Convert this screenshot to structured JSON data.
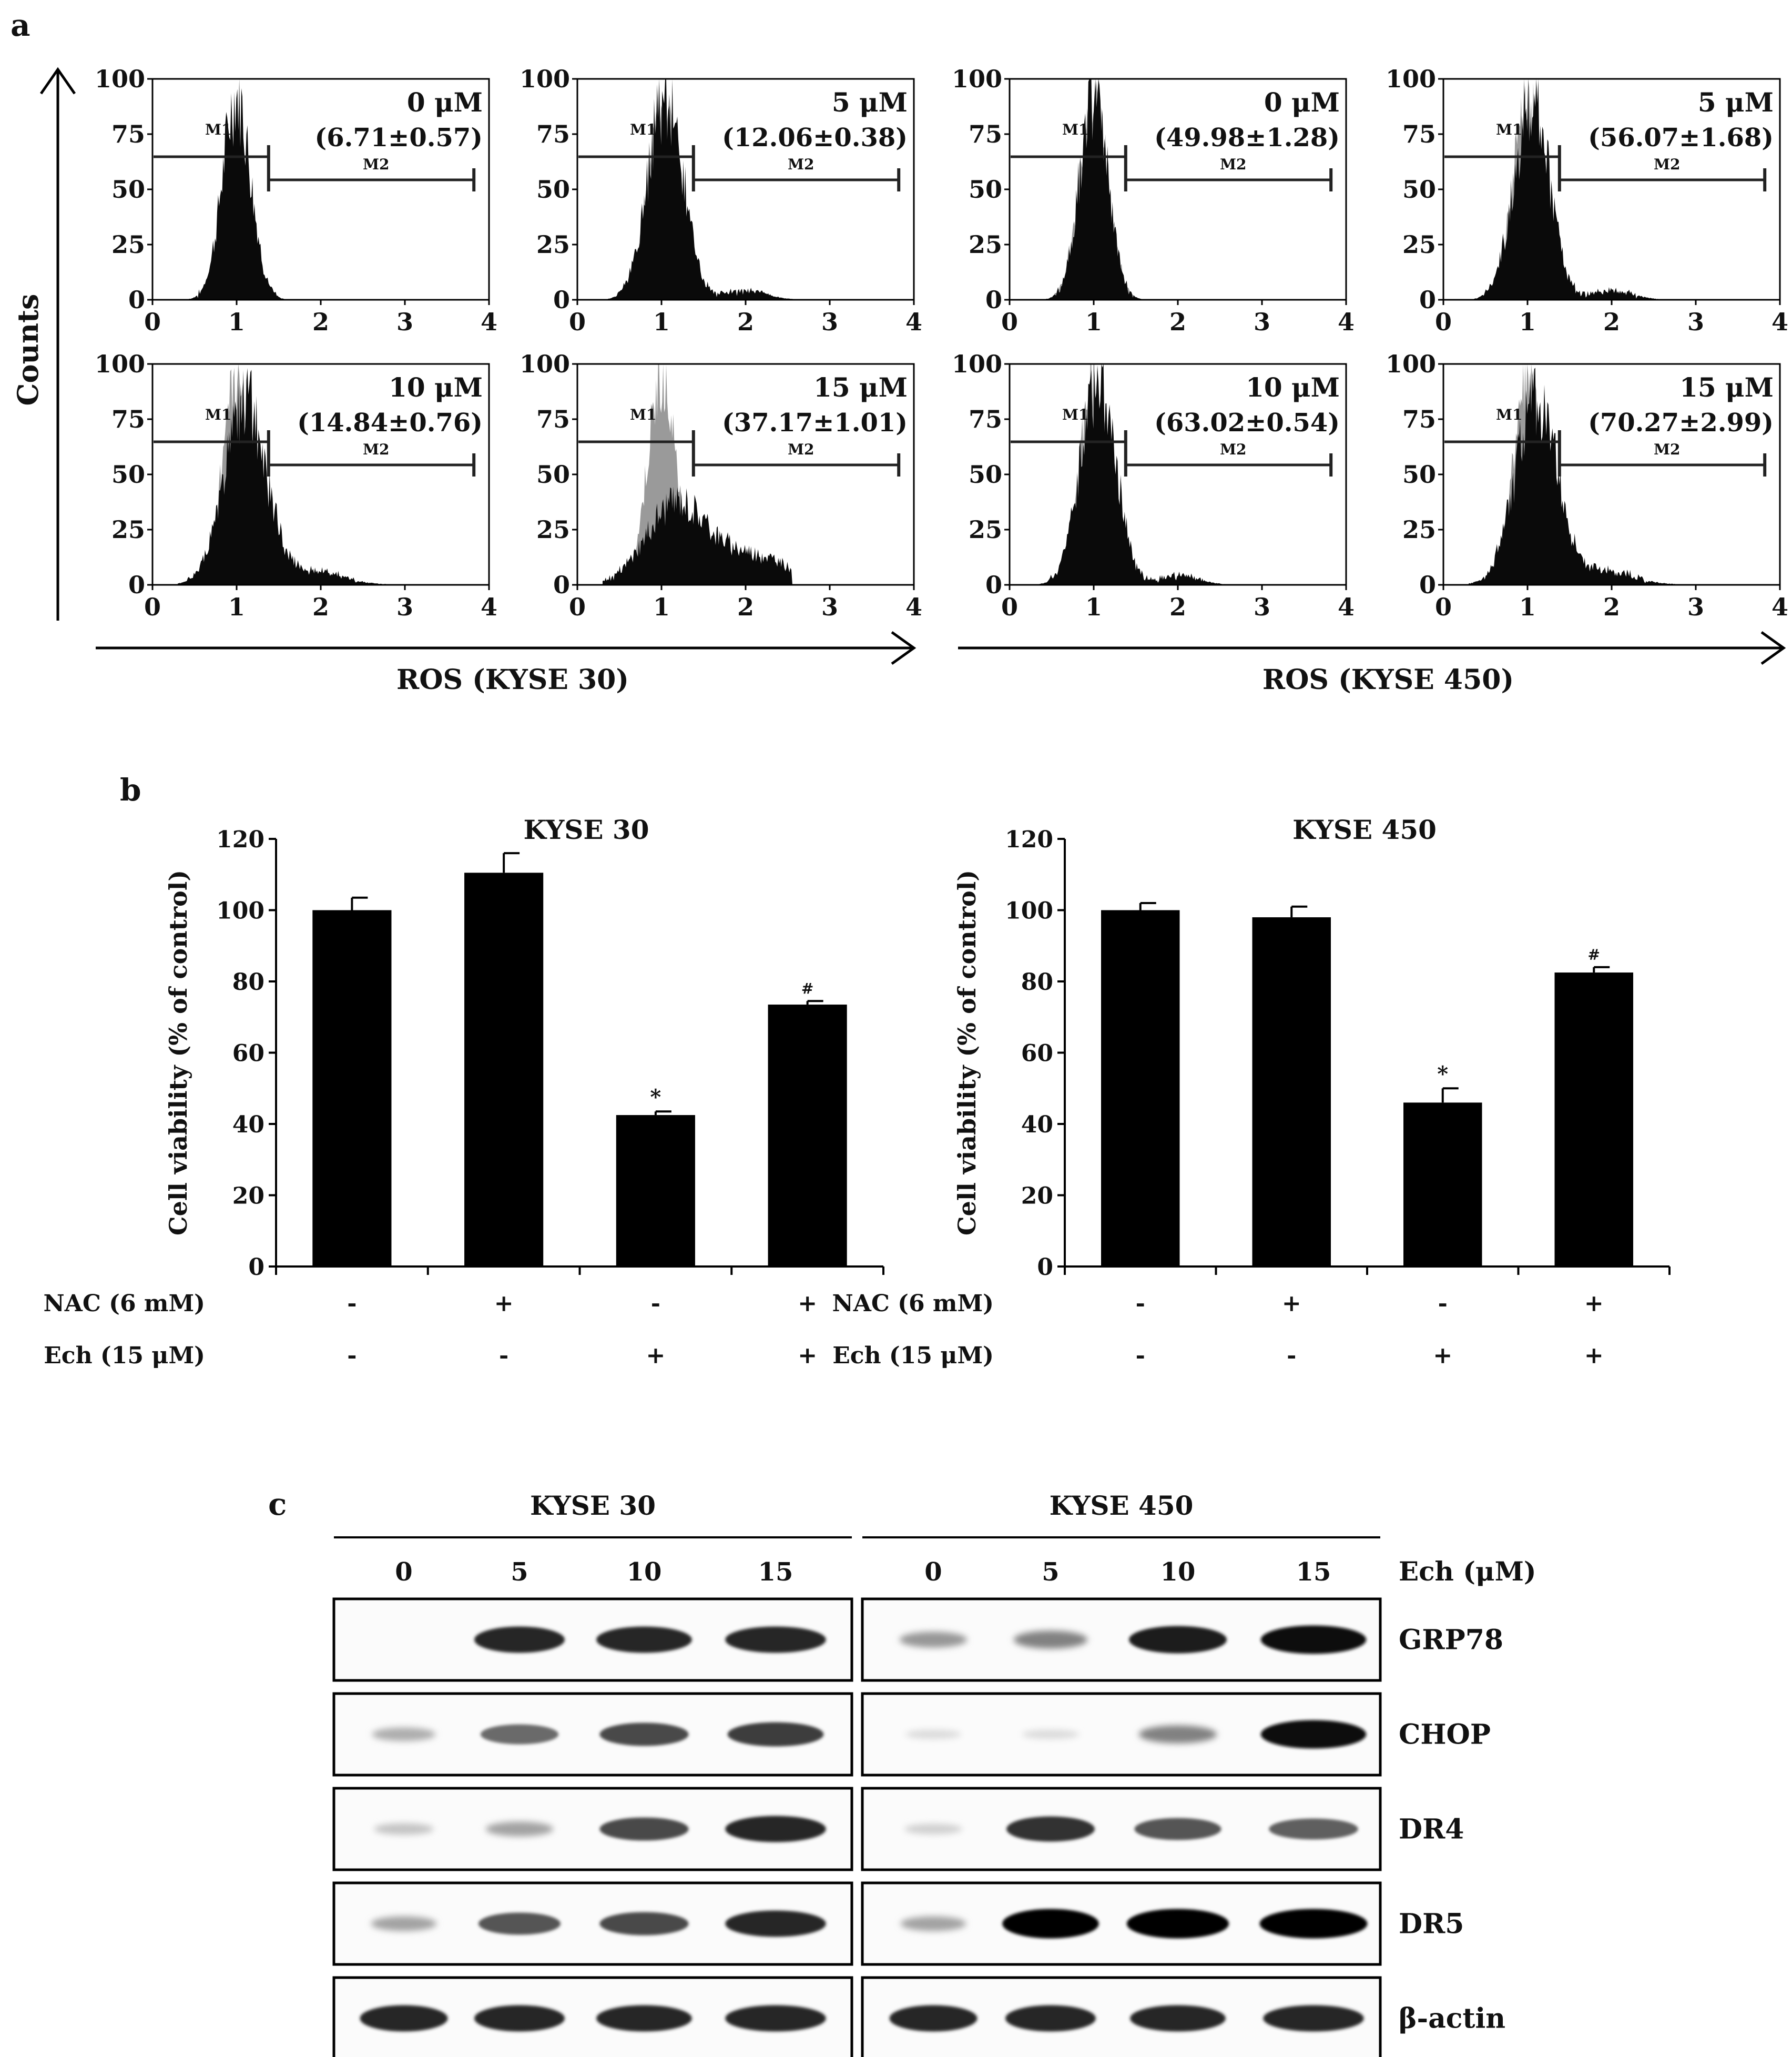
{
  "panel_labels": {
    "a": "a",
    "b": "b",
    "c": "c"
  },
  "panel_a": {
    "y_axis_label": "Counts",
    "x_groups": [
      {
        "label": "ROS (KYSE 30)"
      },
      {
        "label": "ROS (KYSE 450)"
      }
    ],
    "y_ticks": [
      "0",
      "25",
      "50",
      "75",
      "100"
    ],
    "x_ticks": [
      "0",
      "1",
      "2",
      "3",
      "4"
    ],
    "gate_labels": {
      "m1": "M1",
      "m2": "M2"
    },
    "colors": {
      "treated": "#0a0a0a",
      "control": "#9a9a9a"
    },
    "histograms": [
      {
        "cell_line": "KYSE 30",
        "dose": "0 μM",
        "value": "(6.71±0.57)",
        "spread": 0
      },
      {
        "cell_line": "KYSE 30",
        "dose": "5 μM",
        "value": "(12.06±0.38)",
        "spread": 1
      },
      {
        "cell_line": "KYSE 450",
        "dose": "0 μM",
        "value": "(49.98±1.28)",
        "spread": 0
      },
      {
        "cell_line": "KYSE 450",
        "dose": "5 μM",
        "value": "(56.07±1.68)",
        "spread": 1
      },
      {
        "cell_line": "KYSE 30",
        "dose": "10 μM",
        "value": "(14.84±0.76)",
        "spread": 2
      },
      {
        "cell_line": "KYSE 30",
        "dose": "15 μM",
        "value": "(37.17±1.01)",
        "spread": 3
      },
      {
        "cell_line": "KYSE 450",
        "dose": "10 μM",
        "value": "(63.02±0.54)",
        "spread": 1
      },
      {
        "cell_line": "KYSE 450",
        "dose": "15 μM",
        "value": "(70.27±2.99)",
        "spread": 2
      }
    ]
  },
  "chart_data": [
    {
      "type": "bar",
      "title": "KYSE 30",
      "ylabel": "Cell viability (% of control)",
      "ylim": [
        0,
        120
      ],
      "yticks": [
        0,
        20,
        40,
        60,
        80,
        100,
        120
      ],
      "values": [
        100,
        110.5,
        42.5,
        73.5
      ],
      "errors": [
        3.5,
        5.5,
        1.0,
        1.0
      ],
      "annotations": [
        "",
        "",
        "*",
        "#"
      ],
      "row_labels": [
        "NAC (6 mM)",
        "Ech (15 μM)"
      ],
      "nac": [
        "-",
        "+",
        "-",
        "+"
      ],
      "ech": [
        "-",
        "-",
        "+",
        "+"
      ]
    },
    {
      "type": "bar",
      "title": "KYSE 450",
      "ylabel": "Cell viability (% of control)",
      "ylim": [
        0,
        120
      ],
      "yticks": [
        0,
        20,
        40,
        60,
        80,
        100,
        120
      ],
      "values": [
        100,
        98,
        46,
        82.5
      ],
      "errors": [
        2.0,
        3.0,
        4.0,
        1.5
      ],
      "annotations": [
        "",
        "",
        "*",
        "#"
      ],
      "row_labels": [
        "NAC (6 mM)",
        "Ech (15 μM)"
      ],
      "nac": [
        "-",
        "+",
        "-",
        "+"
      ],
      "ech": [
        "-",
        "-",
        "+",
        "+"
      ]
    }
  ],
  "panel_c": {
    "groups": [
      "KYSE 30",
      "KYSE 450"
    ],
    "doses": [
      "0",
      "5",
      "10",
      "15"
    ],
    "dose_unit_label": "Ech (μM)",
    "proteins": [
      {
        "name": "GRP78",
        "kyse30": [
          0.0,
          0.85,
          0.85,
          0.85
        ],
        "kyse450": [
          0.35,
          0.45,
          0.9,
          0.95
        ]
      },
      {
        "name": "CHOP",
        "kyse30": [
          0.25,
          0.55,
          0.7,
          0.75
        ],
        "kyse450": [
          0.05,
          0.05,
          0.45,
          0.95
        ]
      },
      {
        "name": "DR4",
        "kyse30": [
          0.15,
          0.3,
          0.7,
          0.85
        ],
        "kyse450": [
          0.1,
          0.8,
          0.65,
          0.6
        ]
      },
      {
        "name": "DR5",
        "kyse30": [
          0.3,
          0.65,
          0.7,
          0.85
        ],
        "kyse450": [
          0.3,
          1.0,
          1.0,
          1.0
        ]
      },
      {
        "name": "β-actin",
        "kyse30": [
          0.85,
          0.85,
          0.85,
          0.85
        ],
        "kyse450": [
          0.85,
          0.85,
          0.85,
          0.85
        ]
      }
    ]
  }
}
